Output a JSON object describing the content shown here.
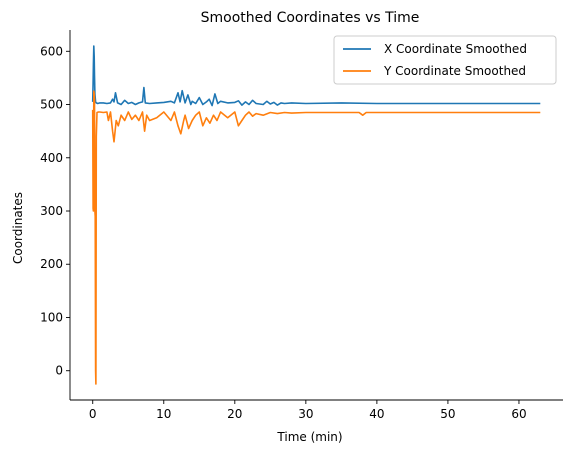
{
  "chart_data": {
    "type": "line",
    "title": "Smoothed Coordinates vs Time",
    "xlabel": "Time (min)",
    "ylabel": "Coordinates",
    "xlim": [
      -3.2,
      66.2
    ],
    "ylim": [
      -55,
      640
    ],
    "xticks": [
      0,
      10,
      20,
      30,
      40,
      50,
      60
    ],
    "yticks": [
      0,
      100,
      200,
      300,
      400,
      500,
      600
    ],
    "grid": false,
    "legend_position": "top-right",
    "series": [
      {
        "name": "X Coordinate Smoothed",
        "color": "#1f77b4",
        "x": [
          0,
          0.05,
          0.1,
          0.15,
          0.2,
          0.25,
          0.3,
          0.4,
          0.5,
          0.7,
          1,
          1.5,
          2,
          2.5,
          2.8,
          3,
          3.2,
          3.5,
          4,
          4.5,
          5,
          5.5,
          6,
          6.5,
          7,
          7.2,
          7.4,
          8,
          9,
          10,
          11,
          11.5,
          12,
          12.3,
          12.6,
          13,
          13.4,
          13.8,
          14,
          14.5,
          15,
          15.5,
          16,
          16.4,
          16.8,
          17.2,
          17.6,
          18,
          19,
          20,
          20.5,
          21,
          21.5,
          22,
          22.5,
          23,
          24,
          24.5,
          25,
          25.5,
          26,
          26.5,
          27,
          28,
          30,
          35,
          40,
          45,
          50,
          55,
          60,
          63
        ],
        "y": [
          505,
          540,
          575,
          610,
          590,
          555,
          520,
          505,
          503,
          502,
          503,
          503,
          502,
          503,
          510,
          505,
          522,
          503,
          500,
          508,
          502,
          504,
          500,
          503,
          505,
          532,
          503,
          502,
          503,
          504,
          506,
          503,
          522,
          505,
          526,
          503,
          518,
          500,
          506,
          502,
          513,
          500,
          505,
          510,
          498,
          520,
          502,
          506,
          503,
          504,
          507,
          499,
          505,
          500,
          508,
          502,
          500,
          506,
          501,
          504,
          499,
          503,
          502,
          503,
          502,
          503,
          502,
          502,
          502,
          502,
          502,
          502
        ]
      },
      {
        "name": "Y Coordinate Smoothed",
        "color": "#ff7f0e",
        "x": [
          0,
          0.05,
          0.1,
          0.15,
          0.2,
          0.25,
          0.3,
          0.35,
          0.4,
          0.45,
          0.5,
          0.6,
          0.8,
          1,
          1.5,
          2,
          2.2,
          2.5,
          2.8,
          3,
          3.3,
          3.6,
          4,
          4.5,
          5,
          5.5,
          6,
          6.5,
          7,
          7.3,
          7.6,
          8,
          9,
          10,
          11,
          11.5,
          12,
          12.4,
          12.8,
          13,
          13.5,
          14,
          14.5,
          15,
          15.5,
          16,
          16.5,
          17,
          17.5,
          18,
          19,
          20,
          20.5,
          21,
          21.5,
          22,
          22.5,
          23,
          24,
          25,
          26,
          27,
          28,
          30,
          35,
          37.5,
          38,
          38.5,
          40,
          45,
          50,
          55,
          60,
          63
        ],
        "y": [
          490,
          305,
          300,
          525,
          520,
          510,
          300,
          290,
          0,
          -25,
          440,
          485,
          486,
          486,
          485,
          486,
          470,
          486,
          450,
          430,
          470,
          460,
          480,
          470,
          486,
          472,
          480,
          470,
          486,
          450,
          480,
          470,
          475,
          486,
          470,
          486,
          460,
          445,
          470,
          480,
          455,
          470,
          480,
          486,
          460,
          475,
          465,
          480,
          470,
          486,
          475,
          486,
          460,
          470,
          480,
          486,
          478,
          483,
          480,
          485,
          483,
          485,
          484,
          485,
          485,
          485,
          480,
          485,
          485,
          485,
          485,
          485,
          485,
          485
        ]
      }
    ]
  }
}
